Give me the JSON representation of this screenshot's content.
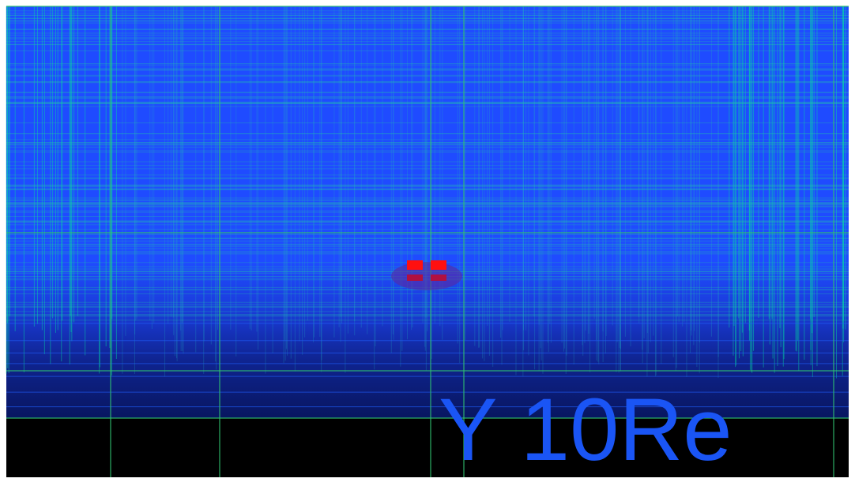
{
  "label": "Y 10Re"
}
